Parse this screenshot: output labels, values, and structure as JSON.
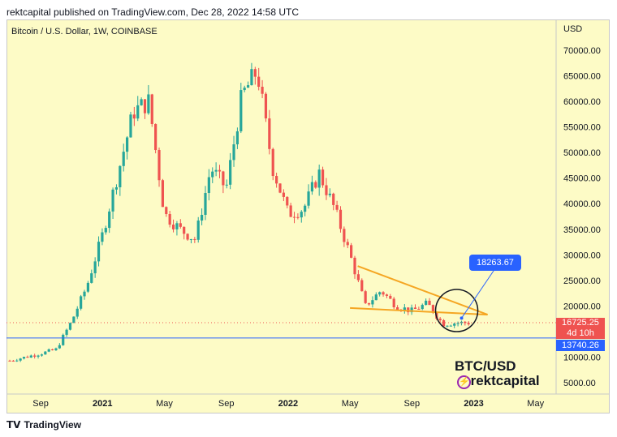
{
  "header": {
    "published_by": "rektcapital published on TradingView.com, Dec 28, 2022 14:58 UTC"
  },
  "symbol_info": "Bitcoin / U.S. Dollar, 1W, COINBASE",
  "axis": {
    "currency": "USD"
  },
  "y_ticks": [
    "70000.00",
    "65000.00",
    "60000.00",
    "55000.00",
    "50000.00",
    "45000.00",
    "40000.00",
    "35000.00",
    "30000.00",
    "25000.00",
    "20000.00",
    "15000.00",
    "10000.00",
    "5000.00"
  ],
  "x_ticks": [
    "Sep",
    "2021",
    "May",
    "Sep",
    "2022",
    "May",
    "Sep",
    "2023",
    "May"
  ],
  "callout": {
    "value": "18263.67"
  },
  "current_price": {
    "value": "16725.25",
    "countdown": "4d 10h"
  },
  "support_level": {
    "value": "13740.26"
  },
  "watermark": {
    "line1": "BTC/USD",
    "line2": "@rektcapital"
  },
  "footer": {
    "brand": "TradingView"
  },
  "colors": {
    "up": "#26a69a",
    "down": "#ef5350",
    "trend": "#f5a623",
    "support": "#2962ff",
    "bg": "#fdfbc6"
  },
  "chart_data": {
    "type": "candlestick",
    "title": "Bitcoin / U.S. Dollar, 1W, COINBASE",
    "ylabel": "USD",
    "ylim": [
      0,
      72000
    ],
    "x_range": [
      "2020-07",
      "2023-06"
    ],
    "anchors": [
      {
        "date": "2020-07",
        "price": 9300
      },
      {
        "date": "2020-09",
        "price": 10700
      },
      {
        "date": "2020-10",
        "price": 11500
      },
      {
        "date": "2020-11",
        "price": 17000
      },
      {
        "date": "2020-12",
        "price": 24000
      },
      {
        "date": "2021-01",
        "price": 34000
      },
      {
        "date": "2021-02",
        "price": 46000
      },
      {
        "date": "2021-03",
        "price": 58000
      },
      {
        "date": "2021-04",
        "price": 60000
      },
      {
        "date": "2021-05",
        "price": 38000
      },
      {
        "date": "2021-06",
        "price": 35000
      },
      {
        "date": "2021-07",
        "price": 33000
      },
      {
        "date": "2021-08",
        "price": 47000
      },
      {
        "date": "2021-09",
        "price": 43000
      },
      {
        "date": "2021-10",
        "price": 61000
      },
      {
        "date": "2021-11",
        "price": 66000
      },
      {
        "date": "2021-12",
        "price": 47000
      },
      {
        "date": "2022-01",
        "price": 38000
      },
      {
        "date": "2022-02",
        "price": 39000
      },
      {
        "date": "2022-03",
        "price": 46000
      },
      {
        "date": "2022-04",
        "price": 39000
      },
      {
        "date": "2022-05",
        "price": 30000
      },
      {
        "date": "2022-06",
        "price": 20000
      },
      {
        "date": "2022-07",
        "price": 23000
      },
      {
        "date": "2022-08",
        "price": 20000
      },
      {
        "date": "2022-09",
        "price": 19000
      },
      {
        "date": "2022-10",
        "price": 20500
      },
      {
        "date": "2022-11",
        "price": 16500
      },
      {
        "date": "2022-12",
        "price": 16700
      }
    ],
    "support": 13740.26,
    "last_price": 16725.25,
    "marked_level": 18263.67
  }
}
